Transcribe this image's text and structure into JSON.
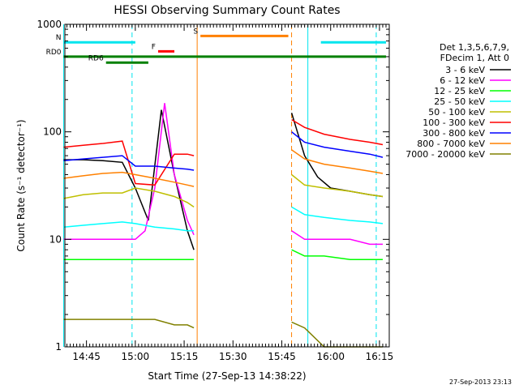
{
  "chart_data": {
    "type": "line",
    "title": "HESSI Observing Summary Count Rates",
    "xlabel": "Start Time (27-Sep-13 14:38:22)",
    "ylabel": "Count Rate (s⁻¹ detector⁻¹)",
    "y_scale": "log",
    "ylim": [
      1,
      1000
    ],
    "xlim": [
      "14:38:22",
      "16:18:00"
    ],
    "x_ticks": [
      "14:45",
      "15:00",
      "15:15",
      "15:30",
      "15:45",
      "16:00",
      "16:15"
    ],
    "y_ticks": [
      "1",
      "10",
      "100",
      "1000"
    ],
    "footer_timestamp": "27-Sep-2013 23:13",
    "legend_header": [
      "Det 1,3,5,6,7,9,",
      "FDecim 1, Att 0"
    ],
    "legend_position": "right",
    "flags": [
      {
        "label": "N",
        "color": "#00e5ee",
        "segments": [
          [
            "14:38",
            "15:00"
          ],
          [
            "15:57",
            "16:17"
          ]
        ],
        "level": 680
      },
      {
        "label": "F",
        "color": "#ff0000",
        "segments": [
          [
            "15:07",
            "15:12"
          ]
        ],
        "level": 560
      },
      {
        "label": "S",
        "color": "#ff8000",
        "segments": [
          [
            "15:20",
            "15:47"
          ]
        ],
        "level": 780
      },
      {
        "label": "RD0",
        "color": "#008000",
        "segments": [
          [
            "14:38",
            "16:17"
          ]
        ],
        "level": 500
      },
      {
        "label": "RD6",
        "color": "#008000",
        "segments": [
          [
            "14:51",
            "15:04"
          ]
        ],
        "level": 440
      }
    ],
    "vertical_markers": [
      {
        "time": "14:38",
        "color": "#00e5ee",
        "style": "solid"
      },
      {
        "time": "14:59",
        "color": "#00e5ee",
        "style": "dashed"
      },
      {
        "time": "15:19",
        "color": "#ff8000",
        "style": "solid"
      },
      {
        "time": "15:48",
        "color": "#ff8000",
        "style": "dashed"
      },
      {
        "time": "15:53",
        "color": "#00e5ee",
        "style": "solid"
      },
      {
        "time": "16:14",
        "color": "#00e5ee",
        "style": "dashed"
      }
    ],
    "series": [
      {
        "name": "3 - 6 keV",
        "color": "#000000",
        "x": [
          "14:38",
          "14:44",
          "14:50",
          "14:56",
          "15:00",
          "15:04",
          "15:08",
          "15:12",
          "15:16",
          "15:18",
          "15:48",
          "15:52",
          "15:56",
          "16:00",
          "16:06",
          "16:12",
          "16:16"
        ],
        "y": [
          55,
          55,
          54,
          52,
          30,
          15,
          160,
          40,
          12,
          8,
          150,
          60,
          38,
          30,
          28,
          26,
          25
        ]
      },
      {
        "name": "6 - 12 keV",
        "color": "#ff00ff",
        "x": [
          "14:38",
          "14:44",
          "14:50",
          "14:56",
          "15:00",
          "15:03",
          "15:06",
          "15:09",
          "15:12",
          "15:16",
          "15:18",
          "15:48",
          "15:52",
          "15:58",
          "16:06",
          "16:12",
          "16:16"
        ],
        "y": [
          10,
          10,
          10,
          10,
          10,
          12,
          30,
          185,
          40,
          15,
          11,
          12,
          10,
          10,
          10,
          9,
          9
        ]
      },
      {
        "name": "12 - 25 keV",
        "color": "#00ff00",
        "x": [
          "14:38",
          "14:44",
          "14:50",
          "14:56",
          "15:00",
          "15:06",
          "15:12",
          "15:16",
          "15:18",
          "15:48",
          "15:52",
          "15:58",
          "16:06",
          "16:12",
          "16:16"
        ],
        "y": [
          6.5,
          6.5,
          6.5,
          6.5,
          6.5,
          6.5,
          6.5,
          6.5,
          6.5,
          8,
          7,
          7,
          6.5,
          6.5,
          6.5
        ]
      },
      {
        "name": "25 - 50 keV",
        "color": "#00ffff",
        "x": [
          "14:38",
          "14:44",
          "14:50",
          "14:56",
          "15:00",
          "15:06",
          "15:12",
          "15:16",
          "15:18",
          "15:48",
          "15:52",
          "15:58",
          "16:06",
          "16:12",
          "16:16"
        ],
        "y": [
          13,
          13.5,
          14,
          14.5,
          14,
          13,
          12.5,
          12,
          12,
          20,
          17,
          16,
          15,
          14.5,
          14
        ]
      },
      {
        "name": "50 - 100 keV",
        "color": "#bfbf00",
        "x": [
          "14:38",
          "14:44",
          "14:50",
          "14:56",
          "15:00",
          "15:06",
          "15:12",
          "15:16",
          "15:18",
          "15:48",
          "15:52",
          "15:58",
          "16:06",
          "16:12",
          "16:16"
        ],
        "y": [
          24,
          26,
          27,
          27,
          30,
          28,
          25,
          22,
          20,
          40,
          32,
          30,
          28,
          26,
          25
        ]
      },
      {
        "name": "100 - 300 keV",
        "color": "#ff0000",
        "x": [
          "14:38",
          "14:44",
          "14:50",
          "14:56",
          "15:00",
          "15:06",
          "15:12",
          "15:16",
          "15:18",
          "15:48",
          "15:52",
          "15:58",
          "16:06",
          "16:12",
          "16:16"
        ],
        "y": [
          72,
          75,
          78,
          82,
          33,
          32,
          62,
          62,
          60,
          130,
          110,
          95,
          85,
          80,
          76
        ]
      },
      {
        "name": "300 - 800 keV",
        "color": "#0000ff",
        "x": [
          "14:38",
          "14:44",
          "14:50",
          "14:56",
          "15:00",
          "15:06",
          "15:12",
          "15:16",
          "15:18",
          "15:48",
          "15:52",
          "15:58",
          "16:06",
          "16:12",
          "16:16"
        ],
        "y": [
          54,
          56,
          58,
          60,
          48,
          48,
          46,
          45,
          44,
          100,
          80,
          72,
          66,
          62,
          58
        ]
      },
      {
        "name": "800 - 7000 keV",
        "color": "#ff8000",
        "x": [
          "14:38",
          "14:44",
          "14:50",
          "14:56",
          "15:00",
          "15:06",
          "15:12",
          "15:16",
          "15:18",
          "15:48",
          "15:52",
          "15:58",
          "16:06",
          "16:12",
          "16:16"
        ],
        "y": [
          37,
          39,
          41,
          42,
          40,
          37,
          34,
          32,
          31,
          68,
          56,
          50,
          46,
          43,
          41
        ]
      },
      {
        "name": "7000 - 20000 keV",
        "color": "#808000",
        "x": [
          "14:38",
          "14:44",
          "14:50",
          "14:56",
          "15:00",
          "15:06",
          "15:12",
          "15:16",
          "15:18",
          "15:48",
          "15:52",
          "15:58",
          "16:06",
          "16:12",
          "16:16"
        ],
        "y": [
          1.8,
          1.8,
          1.8,
          1.8,
          1.8,
          1.8,
          1.6,
          1.6,
          1.5,
          1.7,
          1.5,
          1,
          1,
          1,
          1
        ]
      }
    ]
  }
}
